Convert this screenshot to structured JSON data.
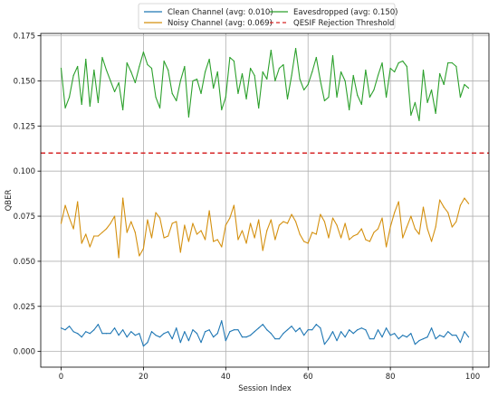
{
  "chart_data": {
    "type": "line",
    "xlabel": "Session Index",
    "ylabel": "QBER",
    "xlim": [
      -4.95,
      103.95
    ],
    "ylim": [
      -0.0087,
      0.1763
    ],
    "x_ticks": [
      0,
      20,
      40,
      60,
      80,
      100
    ],
    "x_tick_labels": [
      "0",
      "20",
      "40",
      "60",
      "80",
      "100"
    ],
    "y_ticks": [
      0.0,
      0.025,
      0.05,
      0.075,
      0.1,
      0.125,
      0.15,
      0.175
    ],
    "y_tick_labels": [
      "0.000",
      "0.025",
      "0.050",
      "0.075",
      "0.100",
      "0.125",
      "0.150",
      "0.175"
    ],
    "grid": true,
    "legend_position": "top-center",
    "legend_columns": 2,
    "x": [
      0,
      1,
      2,
      3,
      4,
      5,
      6,
      7,
      8,
      9,
      10,
      11,
      12,
      13,
      14,
      15,
      16,
      17,
      18,
      19,
      20,
      21,
      22,
      23,
      24,
      25,
      26,
      27,
      28,
      29,
      30,
      31,
      32,
      33,
      34,
      35,
      36,
      37,
      38,
      39,
      40,
      41,
      42,
      43,
      44,
      45,
      46,
      47,
      48,
      49,
      50,
      51,
      52,
      53,
      54,
      55,
      56,
      57,
      58,
      59,
      60,
      61,
      62,
      63,
      64,
      65,
      66,
      67,
      68,
      69,
      70,
      71,
      72,
      73,
      74,
      75,
      76,
      77,
      78,
      79,
      80,
      81,
      82,
      83,
      84,
      85,
      86,
      87,
      88,
      89,
      90,
      91,
      92,
      93,
      94,
      95,
      96,
      97,
      98,
      99
    ],
    "series": [
      {
        "name": "Clean Channel (avg: 0.010)",
        "color": "#1f77b4",
        "style": "solid",
        "values": [
          0.013,
          0.012,
          0.014,
          0.011,
          0.01,
          0.008,
          0.011,
          0.01,
          0.012,
          0.015,
          0.01,
          0.01,
          0.01,
          0.013,
          0.009,
          0.012,
          0.008,
          0.011,
          0.009,
          0.01,
          0.003,
          0.005,
          0.011,
          0.009,
          0.008,
          0.01,
          0.011,
          0.007,
          0.013,
          0.005,
          0.011,
          0.006,
          0.012,
          0.01,
          0.005,
          0.011,
          0.012,
          0.008,
          0.01,
          0.017,
          0.006,
          0.011,
          0.012,
          0.012,
          0.008,
          0.008,
          0.009,
          0.011,
          0.013,
          0.015,
          0.012,
          0.01,
          0.007,
          0.007,
          0.01,
          0.012,
          0.014,
          0.011,
          0.013,
          0.009,
          0.012,
          0.012,
          0.015,
          0.013,
          0.004,
          0.007,
          0.011,
          0.006,
          0.011,
          0.008,
          0.012,
          0.01,
          0.012,
          0.013,
          0.012,
          0.007,
          0.007,
          0.012,
          0.008,
          0.013,
          0.009,
          0.01,
          0.007,
          0.009,
          0.008,
          0.01,
          0.004,
          0.006,
          0.007,
          0.008,
          0.013,
          0.007,
          0.009,
          0.008,
          0.011,
          0.009,
          0.009,
          0.005,
          0.011,
          0.008
        ]
      },
      {
        "name": "Noisy Channel (avg: 0.069)",
        "color": "#d4900f",
        "style": "solid",
        "values": [
          0.071,
          0.081,
          0.074,
          0.068,
          0.083,
          0.06,
          0.065,
          0.058,
          0.064,
          0.064,
          0.066,
          0.068,
          0.071,
          0.075,
          0.052,
          0.085,
          0.066,
          0.072,
          0.066,
          0.053,
          0.057,
          0.073,
          0.063,
          0.077,
          0.074,
          0.063,
          0.064,
          0.071,
          0.072,
          0.055,
          0.07,
          0.061,
          0.071,
          0.065,
          0.067,
          0.062,
          0.078,
          0.061,
          0.062,
          0.058,
          0.07,
          0.074,
          0.081,
          0.062,
          0.067,
          0.06,
          0.071,
          0.063,
          0.073,
          0.056,
          0.067,
          0.073,
          0.062,
          0.07,
          0.072,
          0.071,
          0.076,
          0.072,
          0.065,
          0.061,
          0.06,
          0.066,
          0.065,
          0.076,
          0.072,
          0.063,
          0.074,
          0.07,
          0.063,
          0.071,
          0.062,
          0.064,
          0.065,
          0.068,
          0.062,
          0.061,
          0.066,
          0.068,
          0.074,
          0.058,
          0.069,
          0.077,
          0.083,
          0.063,
          0.069,
          0.075,
          0.068,
          0.065,
          0.08,
          0.068,
          0.061,
          0.069,
          0.084,
          0.08,
          0.077,
          0.069,
          0.072,
          0.081,
          0.085,
          0.082
        ]
      },
      {
        "name": "Eavesdropped (avg: 0.150)",
        "color": "#2ca02c",
        "style": "solid",
        "values": [
          0.157,
          0.135,
          0.141,
          0.153,
          0.158,
          0.137,
          0.162,
          0.136,
          0.156,
          0.138,
          0.163,
          0.156,
          0.15,
          0.144,
          0.149,
          0.134,
          0.16,
          0.155,
          0.149,
          0.158,
          0.166,
          0.159,
          0.157,
          0.141,
          0.135,
          0.161,
          0.156,
          0.143,
          0.139,
          0.15,
          0.158,
          0.13,
          0.15,
          0.151,
          0.143,
          0.155,
          0.162,
          0.146,
          0.155,
          0.134,
          0.141,
          0.163,
          0.161,
          0.143,
          0.154,
          0.14,
          0.157,
          0.153,
          0.135,
          0.155,
          0.151,
          0.167,
          0.15,
          0.157,
          0.159,
          0.14,
          0.153,
          0.168,
          0.151,
          0.145,
          0.148,
          0.155,
          0.163,
          0.15,
          0.139,
          0.141,
          0.164,
          0.141,
          0.155,
          0.15,
          0.134,
          0.153,
          0.142,
          0.137,
          0.156,
          0.141,
          0.145,
          0.153,
          0.16,
          0.141,
          0.157,
          0.155,
          0.16,
          0.161,
          0.158,
          0.131,
          0.138,
          0.128,
          0.156,
          0.138,
          0.145,
          0.132,
          0.154,
          0.148,
          0.16,
          0.16,
          0.158,
          0.141,
          0.148,
          0.146
        ]
      }
    ],
    "threshold": {
      "name": "QESIF Rejection Threshold",
      "value": 0.11,
      "color": "#d62728",
      "style": "dashed"
    }
  }
}
